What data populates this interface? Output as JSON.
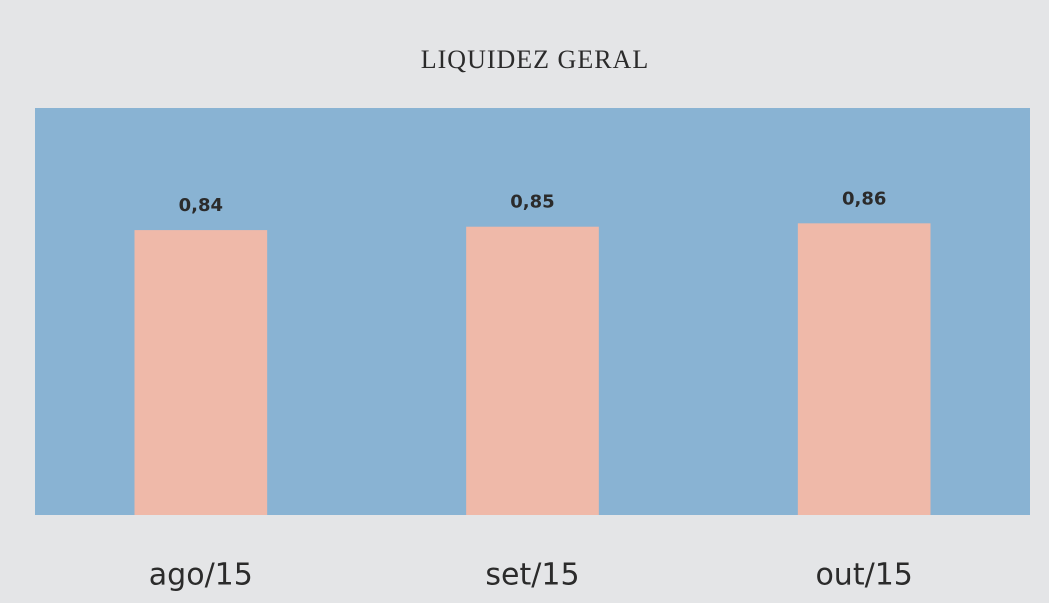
{
  "chart_data": {
    "type": "bar",
    "title": "LIQUIDEZ GERAL",
    "categories": [
      "ago/15",
      "set/15",
      "out/15"
    ],
    "values": [
      0.84,
      0.85,
      0.86
    ],
    "value_labels": [
      "0,84",
      "0,85",
      "0,86"
    ],
    "color": "#efb9a9",
    "ylim": [
      0,
      1.2
    ]
  }
}
